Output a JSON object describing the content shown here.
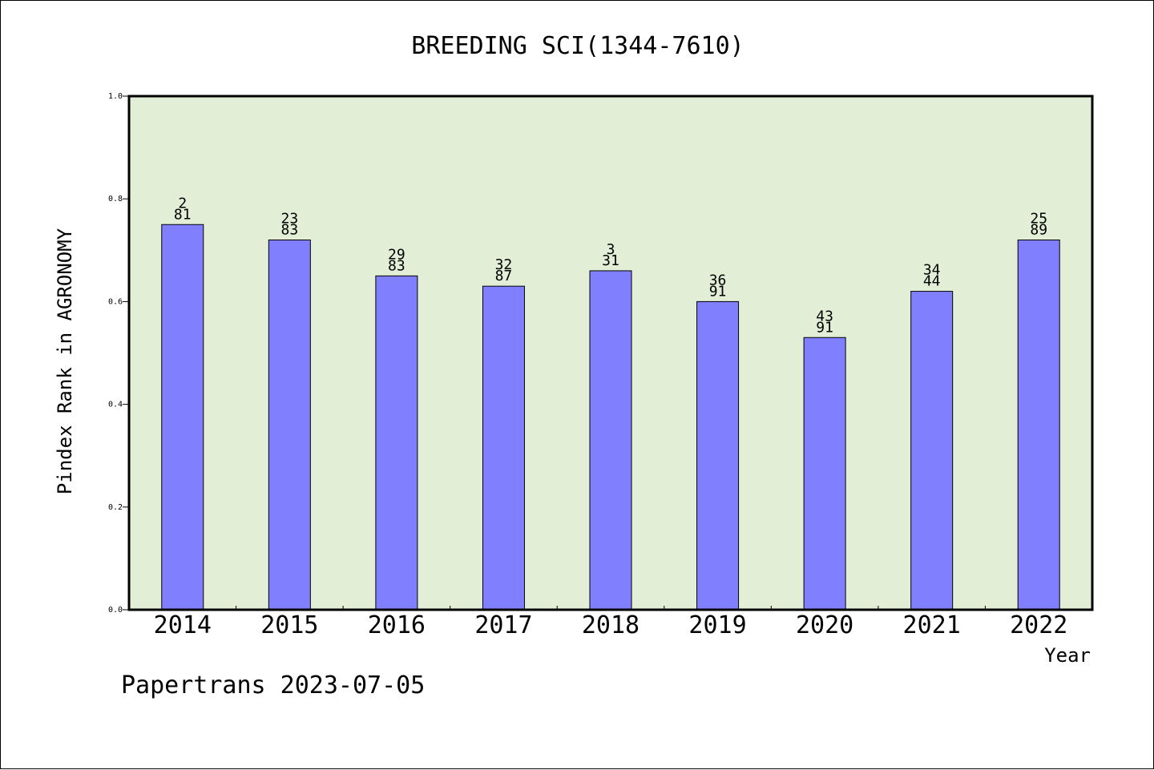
{
  "chart_data": {
    "type": "bar",
    "title": "BREEDING SCI(1344-7610)",
    "xlabel": "Year",
    "ylabel": "Pindex Rank in AGRONOMY",
    "categories": [
      "2014",
      "2015",
      "2016",
      "2017",
      "2018",
      "2019",
      "2020",
      "2021",
      "2022"
    ],
    "values": [
      0.75,
      0.72,
      0.65,
      0.63,
      0.66,
      0.6,
      0.53,
      0.62,
      0.72
    ],
    "annotations": [
      [
        "2",
        "81"
      ],
      [
        "23",
        "83"
      ],
      [
        "29",
        "83"
      ],
      [
        "32",
        "87"
      ],
      [
        "3",
        "31"
      ],
      [
        "36",
        "91"
      ],
      [
        "43",
        "91"
      ],
      [
        "34",
        "44"
      ],
      [
        "25",
        "89"
      ]
    ],
    "ylim": [
      0,
      1.0
    ],
    "yticks": [
      "0.0",
      "0.2",
      "0.4",
      "0.6",
      "0.8",
      "1.0"
    ],
    "grid": false,
    "colors": {
      "bar": "#8080ff",
      "plot_background": "#e2efd6",
      "axis": "#000000"
    }
  },
  "footer": {
    "text": "Papertrans 2023-07-05"
  }
}
